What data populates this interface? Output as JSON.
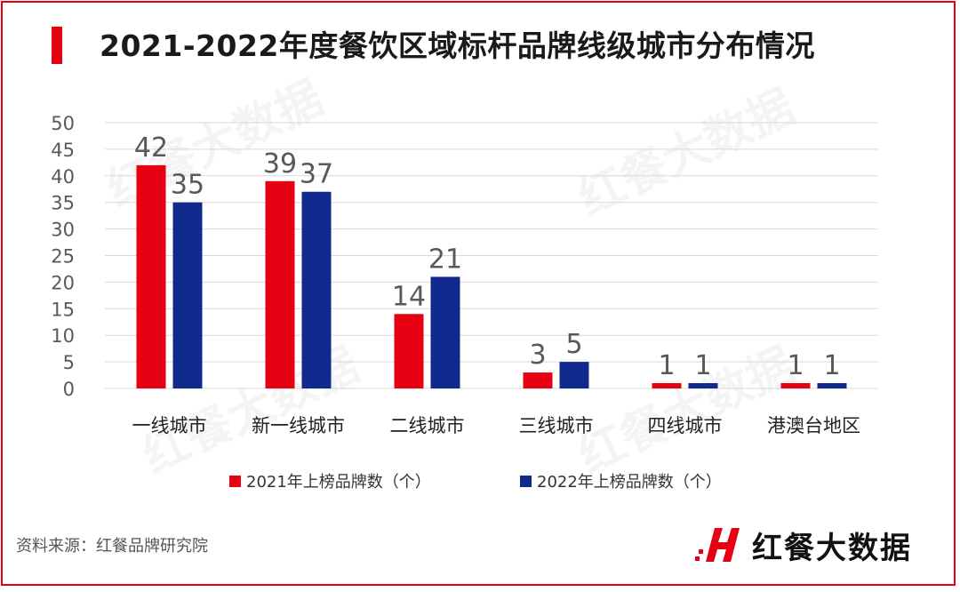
{
  "title": "2021-2022年度餐饮区域标杆品牌线级城市分布情况",
  "source": "资料来源：红餐品牌研究院",
  "brand": {
    "logo_text": "红餐大数据",
    "watermark_text": "红餐大数据"
  },
  "colors": {
    "series2021": "#e60012",
    "series2022": "#0f2a8c",
    "grid": "#d9d9d9",
    "axis_text": "#595959",
    "label_text": "#595959"
  },
  "chart_data": {
    "type": "bar",
    "categories": [
      "一线城市",
      "新一线城市",
      "二线城市",
      "三线城市",
      "四线城市",
      "港澳台地区"
    ],
    "series": [
      {
        "name": "2021年上榜品牌数（个）",
        "values": [
          42,
          39,
          14,
          3,
          1,
          1
        ]
      },
      {
        "name": "2022年上榜品牌数（个）",
        "values": [
          35,
          37,
          21,
          5,
          1,
          1
        ]
      }
    ],
    "ylim": [
      0,
      50
    ],
    "yticks": [
      0,
      5,
      10,
      15,
      20,
      25,
      30,
      35,
      40,
      45,
      50
    ],
    "grid": true,
    "legend_position": "bottom",
    "data_labels": true
  }
}
